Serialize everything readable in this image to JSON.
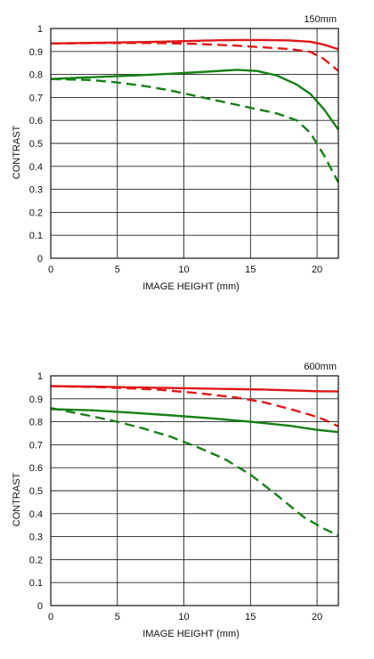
{
  "colors": {
    "sagittal": "#e01818",
    "meridional": "#168016",
    "grid": "#222222",
    "frame": "#111111"
  },
  "chart_data": [
    {
      "type": "line",
      "title": "150mm",
      "xlabel": "IMAGE HEIGHT (mm)",
      "ylabel": "CONTRAST",
      "xlim": [
        0,
        21.6
      ],
      "ylim": [
        0,
        1
      ],
      "x_ticks": [
        0,
        5,
        10,
        15,
        20
      ],
      "y_ticks": [
        0,
        0.1,
        0.2,
        0.3,
        0.4,
        0.5,
        0.6,
        0.7,
        0.8,
        0.9,
        1
      ],
      "y_tick_labels": [
        "0",
        "0.1",
        "0.2",
        "0.3",
        "0.4",
        "0.5",
        "0.6",
        "0.7",
        "0.8",
        "0.9",
        "1"
      ],
      "grid": true,
      "series": [
        {
          "color": "red",
          "style": "solid",
          "x": [
            0,
            4,
            8,
            12,
            14,
            16,
            18,
            19.5,
            20.5,
            21.6
          ],
          "y": [
            0.935,
            0.938,
            0.942,
            0.948,
            0.95,
            0.95,
            0.948,
            0.942,
            0.93,
            0.91
          ]
        },
        {
          "color": "red",
          "style": "dashed",
          "x": [
            0,
            4,
            8,
            11,
            14,
            16,
            18,
            19.5,
            20.5,
            21.6
          ],
          "y": [
            0.935,
            0.937,
            0.937,
            0.933,
            0.925,
            0.918,
            0.91,
            0.898,
            0.868,
            0.815
          ]
        },
        {
          "color": "green",
          "style": "solid",
          "x": [
            0,
            3,
            6,
            9,
            12,
            14,
            15.5,
            17,
            18.5,
            19.5,
            20.5,
            21.6
          ],
          "y": [
            0.78,
            0.788,
            0.795,
            0.803,
            0.813,
            0.82,
            0.815,
            0.795,
            0.755,
            0.715,
            0.65,
            0.56
          ]
        },
        {
          "color": "green",
          "style": "dashed",
          "x": [
            0,
            3,
            5,
            7,
            9,
            11,
            13,
            15,
            17,
            18.5,
            19.5,
            20.5,
            21.6
          ],
          "y": [
            0.78,
            0.776,
            0.765,
            0.75,
            0.73,
            0.705,
            0.68,
            0.655,
            0.63,
            0.6,
            0.545,
            0.45,
            0.33
          ]
        }
      ]
    },
    {
      "type": "line",
      "title": "600mm",
      "xlabel": "IMAGE HEIGHT (mm)",
      "ylabel": "CONTRAST",
      "xlim": [
        0,
        21.6
      ],
      "ylim": [
        0,
        1
      ],
      "x_ticks": [
        0,
        5,
        10,
        15,
        20
      ],
      "y_ticks": [
        0,
        0.1,
        0.2,
        0.3,
        0.4,
        0.5,
        0.6,
        0.7,
        0.8,
        0.9,
        1
      ],
      "y_tick_labels": [
        "0",
        "0.1",
        "0.2",
        "0.3",
        "0.4",
        "0.5",
        "0.6",
        "0.7",
        "0.8",
        "0.9",
        "1"
      ],
      "grid": true,
      "series": [
        {
          "color": "red",
          "style": "solid",
          "x": [
            0,
            4,
            8,
            12,
            16,
            20,
            21.6
          ],
          "y": [
            0.955,
            0.952,
            0.948,
            0.944,
            0.94,
            0.933,
            0.932
          ]
        },
        {
          "color": "red",
          "style": "dashed",
          "x": [
            0,
            4,
            8,
            11,
            14,
            16,
            18,
            19.5,
            20.5,
            21.6
          ],
          "y": [
            0.955,
            0.95,
            0.94,
            0.925,
            0.905,
            0.885,
            0.855,
            0.83,
            0.81,
            0.78
          ]
        },
        {
          "color": "green",
          "style": "solid",
          "x": [
            0,
            3,
            6,
            9,
            12,
            15,
            18,
            20,
            21.6
          ],
          "y": [
            0.855,
            0.85,
            0.84,
            0.828,
            0.815,
            0.8,
            0.782,
            0.765,
            0.755
          ]
        },
        {
          "color": "green",
          "style": "dashed",
          "x": [
            0,
            3,
            5,
            7,
            9,
            11,
            13,
            15,
            17,
            19,
            20.5,
            21.6
          ],
          "y": [
            0.86,
            0.825,
            0.8,
            0.77,
            0.735,
            0.69,
            0.64,
            0.57,
            0.48,
            0.385,
            0.335,
            0.305
          ]
        }
      ]
    }
  ]
}
